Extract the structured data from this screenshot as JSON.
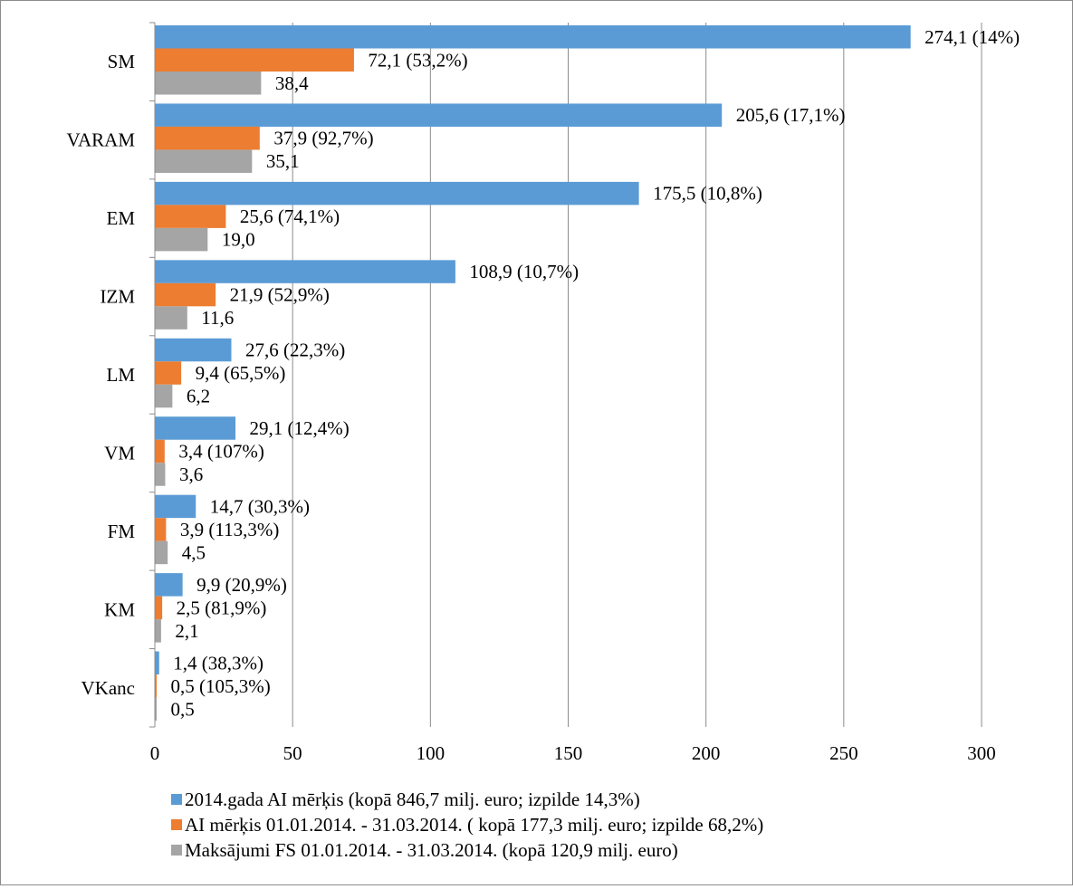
{
  "chart_data": {
    "type": "bar",
    "orientation": "horizontal",
    "title": "",
    "xlabel": "",
    "ylabel": "",
    "xlim": [
      0,
      300
    ],
    "xticks": [
      0,
      50,
      100,
      150,
      200,
      250,
      300
    ],
    "x_grid": true,
    "legend_position": "bottom",
    "categories": [
      "SM",
      "VARAM",
      "EM",
      "IZM",
      "LM",
      "VM",
      "FM",
      "KM",
      "VKanc"
    ],
    "series": [
      {
        "name": "2014.gada AI mērķis (kopā  846,7 milj. euro; izpilde 14,3%)",
        "color": "#5B9BD5",
        "values": [
          274.1,
          205.6,
          175.5,
          108.9,
          27.6,
          29.1,
          14.7,
          9.9,
          1.4
        ],
        "labels": [
          "274,1 (14%)",
          "205,6 (17,1%)",
          "175,5 (10,8%)",
          "108,9 (10,7%)",
          "27,6 (22,3%)",
          "29,1 (12,4%)",
          "14,7 (30,3%)",
          "9,9 (20,9%)",
          "1,4 (38,3%)"
        ]
      },
      {
        "name": "AI mērķis 01.01.2014. - 31.03.2014. ( kopā 177,3 milj. euro; izpilde 68,2%)",
        "color": "#ED7D31",
        "values": [
          72.1,
          37.9,
          25.6,
          21.9,
          9.4,
          3.4,
          3.9,
          2.5,
          0.5
        ],
        "labels": [
          "72,1 (53,2%)",
          "37,9 (92,7%)",
          "25,6 (74,1%)",
          "21,9 (52,9%)",
          "9,4 (65,5%)",
          "3,4 (107%)",
          "3,9 (113,3%)",
          "2,5 (81,9%)",
          "0,5 (105,3%)"
        ]
      },
      {
        "name": "Maksājumi FS 01.01.2014. - 31.03.2014. (kopā 120,9 milj. euro)",
        "color": "#A5A5A5",
        "values": [
          38.4,
          35.1,
          19.0,
          11.6,
          6.2,
          3.6,
          4.5,
          2.1,
          0.5
        ],
        "labels": [
          "38,4",
          "35,1",
          "19,0",
          "11,6",
          "6,2",
          "3,6",
          "4,5",
          "2,1",
          "0,5"
        ]
      }
    ]
  }
}
